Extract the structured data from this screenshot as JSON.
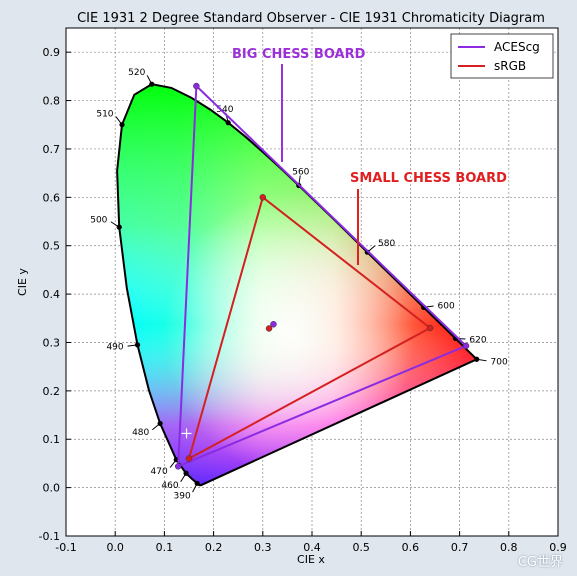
{
  "chart_data": {
    "type": "scatter",
    "title": "CIE 1931 2 Degree Standard Observer - CIE 1931 Chromaticity Diagram",
    "xlabel": "CIE x",
    "ylabel": "CIE y",
    "xlim": [
      -0.1,
      0.9
    ],
    "ylim": [
      -0.1,
      0.95
    ],
    "xticks": [
      "-0.1",
      "0.0",
      "0.1",
      "0.2",
      "0.3",
      "0.4",
      "0.5",
      "0.6",
      "0.7",
      "0.8",
      "0.9"
    ],
    "yticks": [
      "-0.1",
      "0.0",
      "0.1",
      "0.2",
      "0.3",
      "0.4",
      "0.5",
      "0.6",
      "0.7",
      "0.8",
      "0.9"
    ],
    "grid": true,
    "legend_position": "top-right",
    "spectral_locus": [
      [
        0.1741,
        0.005
      ],
      [
        0.1738,
        0.0049
      ],
      [
        0.1733,
        0.0048
      ],
      [
        0.1726,
        0.0048
      ],
      [
        0.1714,
        0.0051
      ],
      [
        0.1689,
        0.0069
      ],
      [
        0.1644,
        0.0109
      ],
      [
        0.1566,
        0.0177
      ],
      [
        0.144,
        0.0297
      ],
      [
        0.1241,
        0.0578
      ],
      [
        0.0913,
        0.1327
      ],
      [
        0.0687,
        0.2007
      ],
      [
        0.0454,
        0.295
      ],
      [
        0.0235,
        0.4127
      ],
      [
        0.0082,
        0.5384
      ],
      [
        0.0039,
        0.6548
      ],
      [
        0.0139,
        0.7502
      ],
      [
        0.0389,
        0.812
      ],
      [
        0.0743,
        0.8338
      ],
      [
        0.1142,
        0.8262
      ],
      [
        0.1547,
        0.8059
      ],
      [
        0.1929,
        0.7816
      ],
      [
        0.2296,
        0.7543
      ],
      [
        0.2658,
        0.7243
      ],
      [
        0.3016,
        0.6923
      ],
      [
        0.3373,
        0.6589
      ],
      [
        0.3731,
        0.6245
      ],
      [
        0.4087,
        0.5896
      ],
      [
        0.4441,
        0.5547
      ],
      [
        0.4788,
        0.5202
      ],
      [
        0.5125,
        0.4866
      ],
      [
        0.5448,
        0.4544
      ],
      [
        0.5752,
        0.4242
      ],
      [
        0.6029,
        0.3965
      ],
      [
        0.627,
        0.3725
      ],
      [
        0.6482,
        0.3514
      ],
      [
        0.6658,
        0.334
      ],
      [
        0.6801,
        0.3197
      ],
      [
        0.6915,
        0.3083
      ],
      [
        0.7006,
        0.2993
      ],
      [
        0.7079,
        0.292
      ],
      [
        0.714,
        0.2859
      ],
      [
        0.719,
        0.2809
      ],
      [
        0.723,
        0.277
      ],
      [
        0.726,
        0.274
      ],
      [
        0.7283,
        0.2717
      ],
      [
        0.73,
        0.27
      ],
      [
        0.7311,
        0.2689
      ],
      [
        0.732,
        0.268
      ],
      [
        0.7327,
        0.2673
      ],
      [
        0.7334,
        0.2666
      ],
      [
        0.734,
        0.266
      ],
      [
        0.7344,
        0.2656
      ],
      [
        0.7346,
        0.2654
      ],
      [
        0.7347,
        0.2653
      ]
    ],
    "wavelength_markers": [
      {
        "label": "390",
        "x": 0.1666,
        "y": 0.0089
      },
      {
        "label": "460",
        "x": 0.144,
        "y": 0.0297
      },
      {
        "label": "470",
        "x": 0.1241,
        "y": 0.0578
      },
      {
        "label": "480",
        "x": 0.0913,
        "y": 0.1327
      },
      {
        "label": "490",
        "x": 0.0454,
        "y": 0.295
      },
      {
        "label": "500",
        "x": 0.0082,
        "y": 0.5384
      },
      {
        "label": "510",
        "x": 0.0139,
        "y": 0.7502
      },
      {
        "label": "520",
        "x": 0.0743,
        "y": 0.8338
      },
      {
        "label": "540",
        "x": 0.2296,
        "y": 0.7543
      },
      {
        "label": "560",
        "x": 0.3731,
        "y": 0.6245
      },
      {
        "label": "580",
        "x": 0.5125,
        "y": 0.4866
      },
      {
        "label": "600",
        "x": 0.627,
        "y": 0.3725
      },
      {
        "label": "620",
        "x": 0.6915,
        "y": 0.3083
      },
      {
        "label": "700",
        "x": 0.7347,
        "y": 0.2653
      }
    ],
    "series": [
      {
        "name": "ACEScg",
        "color": "#8a2be2",
        "primaries": [
          [
            0.713,
            0.293
          ],
          [
            0.165,
            0.83
          ],
          [
            0.128,
            0.044
          ]
        ],
        "whitepoint": [
          0.32168,
          0.33767
        ]
      },
      {
        "name": "sRGB",
        "color": "#d42020",
        "primaries": [
          [
            0.64,
            0.33
          ],
          [
            0.3,
            0.6
          ],
          [
            0.15,
            0.06
          ]
        ],
        "whitepoint": [
          0.3127,
          0.329
        ]
      }
    ],
    "annotations": [
      {
        "text": "BIG CHESS BOARD",
        "color": "#9b30d9"
      },
      {
        "text": "SMALL CHESS BOARD",
        "color": "#e02020"
      }
    ],
    "extra_marker": {
      "x": 0.145,
      "y": 0.112
    }
  },
  "watermark": "CG世界"
}
